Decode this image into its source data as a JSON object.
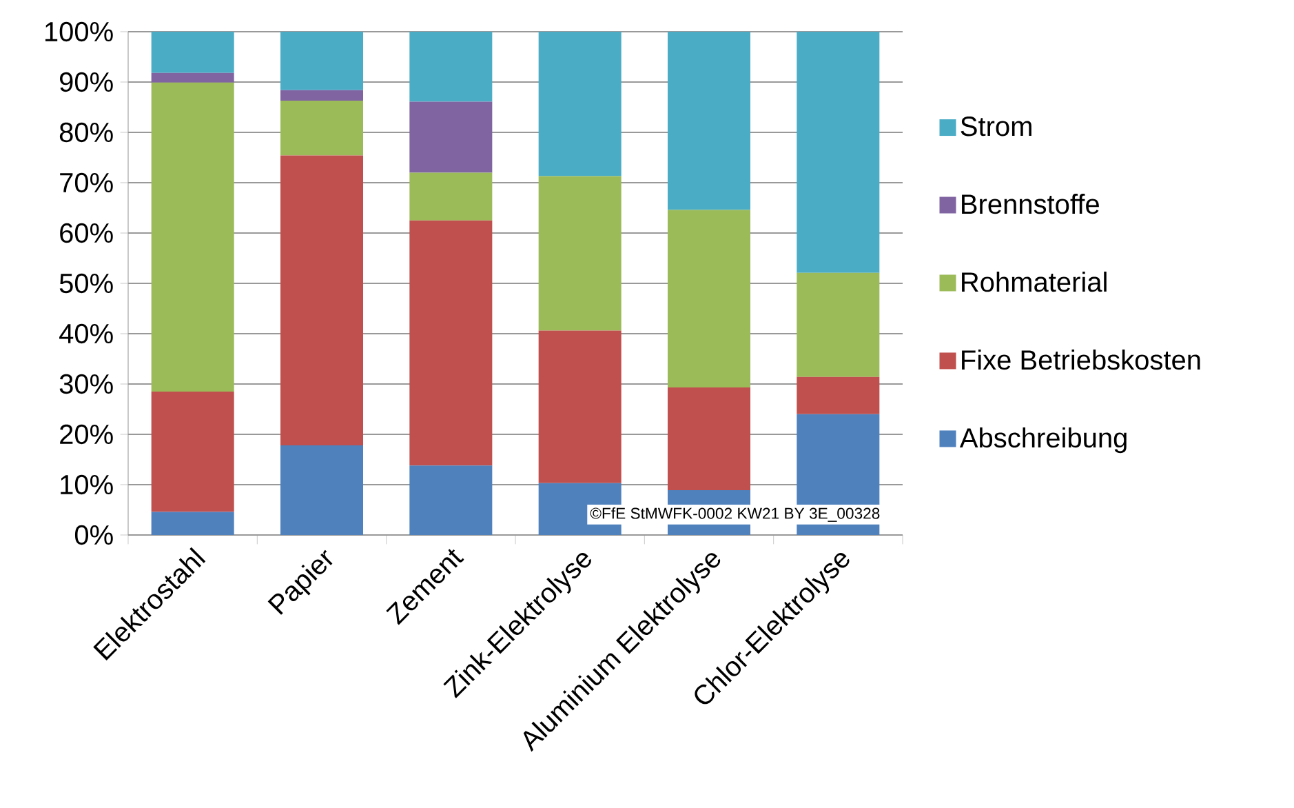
{
  "chart_data": {
    "type": "bar",
    "stacked": true,
    "categories": [
      "Elektrostahl",
      "Papier",
      "Zement",
      "Zink-Elektrolyse",
      "Aluminium Elektrolyse",
      "Chlor-Elektrolyse"
    ],
    "series": [
      {
        "name": "Abschreibung",
        "color": "#4f81bd",
        "values": [
          4.6,
          17.8,
          13.8,
          10.3,
          8.9,
          24.0
        ]
      },
      {
        "name": "Fixe Betriebskosten",
        "color": "#c0504d",
        "values": [
          23.9,
          57.6,
          48.7,
          30.3,
          20.4,
          7.4
        ]
      },
      {
        "name": "Rohmaterial",
        "color": "#9bbb59",
        "values": [
          61.4,
          10.9,
          9.5,
          30.7,
          35.3,
          20.7
        ]
      },
      {
        "name": "Brennstoffe",
        "color": "#8064a2",
        "values": [
          1.9,
          2.1,
          14.1,
          0,
          0,
          0
        ]
      },
      {
        "name": "Strom",
        "color": "#4bacc6",
        "values": [
          8.2,
          11.6,
          13.9,
          28.7,
          35.4,
          47.9
        ]
      }
    ],
    "ylim": [
      0,
      100
    ],
    "yticks": [
      {
        "value": 0,
        "label": "0%"
      },
      {
        "value": 10,
        "label": "10%"
      },
      {
        "value": 20,
        "label": "20%"
      },
      {
        "value": 30,
        "label": "30%"
      },
      {
        "value": 40,
        "label": "40%"
      },
      {
        "value": 50,
        "label": "50%"
      },
      {
        "value": 60,
        "label": "60%"
      },
      {
        "value": 70,
        "label": "70%"
      },
      {
        "value": 80,
        "label": "80%"
      },
      {
        "value": 90,
        "label": "90%"
      },
      {
        "value": 100,
        "label": "100%"
      }
    ],
    "grid": "y",
    "legend": "right",
    "annotations": [
      "©FfE StMWFK-0002 KW21 BY 3E_00328"
    ]
  }
}
